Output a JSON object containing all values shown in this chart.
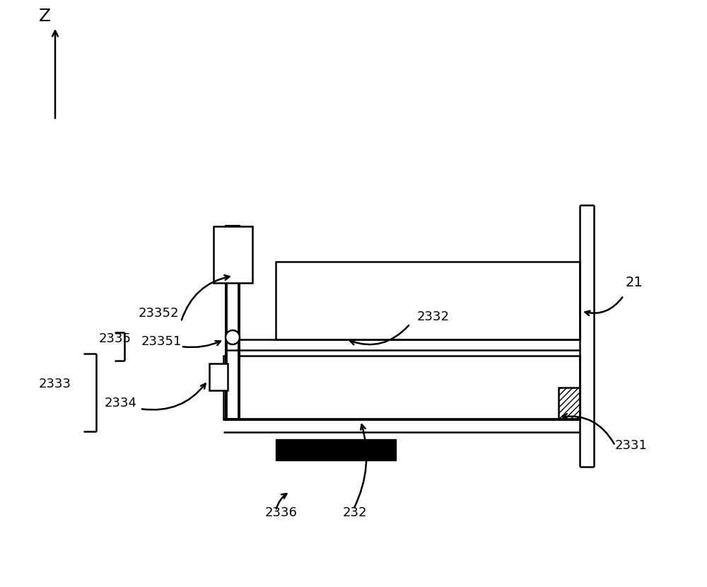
{
  "bg_color": "#ffffff",
  "line_color": "#000000",
  "fig_width": 10.0,
  "fig_height": 8.3,
  "dpi": 100
}
